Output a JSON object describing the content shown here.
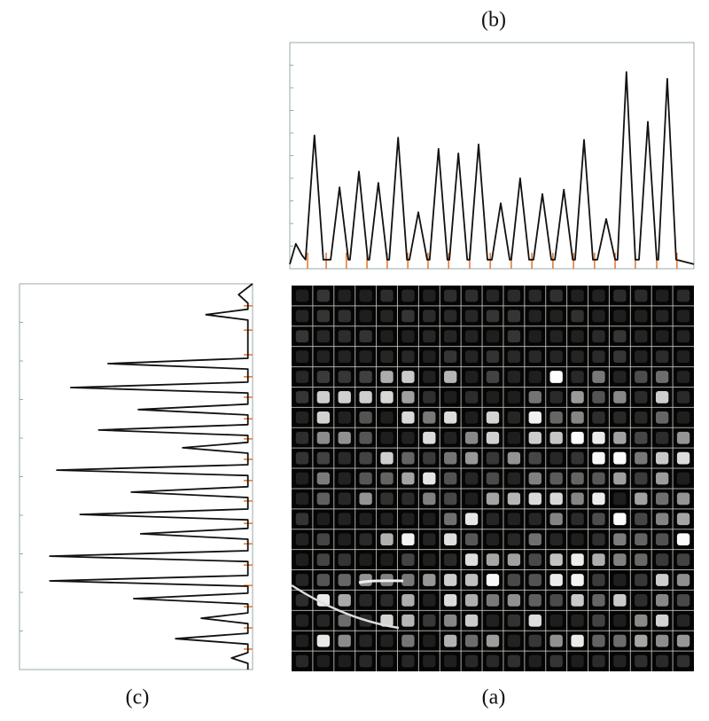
{
  "chart_data": [
    {
      "type": "line",
      "orientation": "horizontal",
      "caption": "(b)",
      "color": "#111111",
      "marker_color": "#e8742c",
      "xlim": [
        0,
        100
      ],
      "ylim": [
        0,
        100
      ],
      "x": [
        0,
        1.5,
        3,
        3.9,
        6.1,
        8.3,
        10.1,
        12.3,
        14.5,
        14.9,
        17.1,
        19.3,
        19.7,
        21.9,
        24.1,
        24.6,
        26.8,
        29.0,
        29.6,
        31.8,
        34.0,
        34.6,
        36.8,
        39.0,
        39.5,
        41.7,
        43.9,
        44.5,
        46.7,
        48.9,
        50.0,
        52.2,
        54.4,
        54.8,
        57.0,
        59.2,
        60.3,
        62.5,
        64.7,
        65.6,
        67.8,
        70.0,
        70.6,
        72.8,
        75.0,
        76.1,
        78.3,
        80.5,
        81.1,
        83.3,
        85.5,
        86.4,
        88.6,
        90.8,
        91.2,
        93.4,
        95.6,
        100
      ],
      "values": [
        2,
        11,
        6,
        4,
        59,
        4,
        4,
        36,
        4,
        4,
        43,
        4,
        4,
        38,
        4,
        4,
        58,
        4,
        4,
        25,
        4,
        4,
        53,
        4,
        4,
        51,
        4,
        4,
        55,
        4,
        4,
        29,
        4,
        4,
        40,
        4,
        4,
        33,
        4,
        4,
        35,
        4,
        4,
        57,
        4,
        4,
        22,
        4,
        4,
        87,
        4,
        4,
        65,
        4,
        4,
        84,
        4,
        2
      ],
      "markers": [
        4.4,
        9.0,
        14.0,
        19.1,
        24.1,
        29.2,
        34.2,
        39.3,
        44.5,
        49.6,
        54.8,
        59.9,
        65.1,
        70.2,
        75.4,
        80.5,
        85.5,
        90.8,
        95.8
      ]
    },
    {
      "type": "line",
      "orientation": "vertical",
      "caption": "(c)",
      "color": "#111111",
      "marker_color": "#e8742c",
      "xlim": [
        0,
        100
      ],
      "ylim": [
        0,
        100
      ],
      "x": [
        0,
        2.8,
        5,
        6.6,
        8.0,
        9.4,
        19.3,
        20.7,
        22.1,
        25.5,
        26.9,
        28.3,
        31.2,
        32.6,
        34.0,
        36.5,
        37.9,
        39.3,
        41.1,
        42.5,
        43.9,
        46.9,
        48.3,
        49.7,
        52.6,
        54.0,
        55.4,
        58.4,
        59.8,
        61.2,
        63.4,
        64.8,
        66.2,
        69.2,
        70.6,
        72.0,
        75.6,
        77.0,
        78.4,
        80.2,
        81.6,
        83.0,
        85.3,
        86.7,
        88.1,
        90.6,
        92.0,
        93.4,
        95.6,
        97.0,
        98.4,
        100
      ],
      "values": [
        0,
        6,
        2,
        2,
        20,
        2,
        2,
        62,
        2,
        2,
        78,
        2,
        2,
        49,
        2,
        2,
        66,
        2,
        2,
        30,
        2,
        2,
        84,
        2,
        2,
        52,
        2,
        2,
        74,
        2,
        2,
        48,
        2,
        2,
        87,
        2,
        2,
        87,
        2,
        2,
        51,
        2,
        2,
        22,
        2,
        2,
        33,
        2,
        2,
        9,
        2,
        2
      ],
      "markers": [
        5.7,
        12.0,
        18.4,
        24.1,
        29.4,
        35.0,
        40.2,
        45.5,
        51.0,
        56.3,
        62.1,
        67.4,
        72.9,
        78.2,
        83.7,
        89.2,
        94.7
      ]
    },
    {
      "type": "image",
      "caption": "(a)"
    }
  ]
}
